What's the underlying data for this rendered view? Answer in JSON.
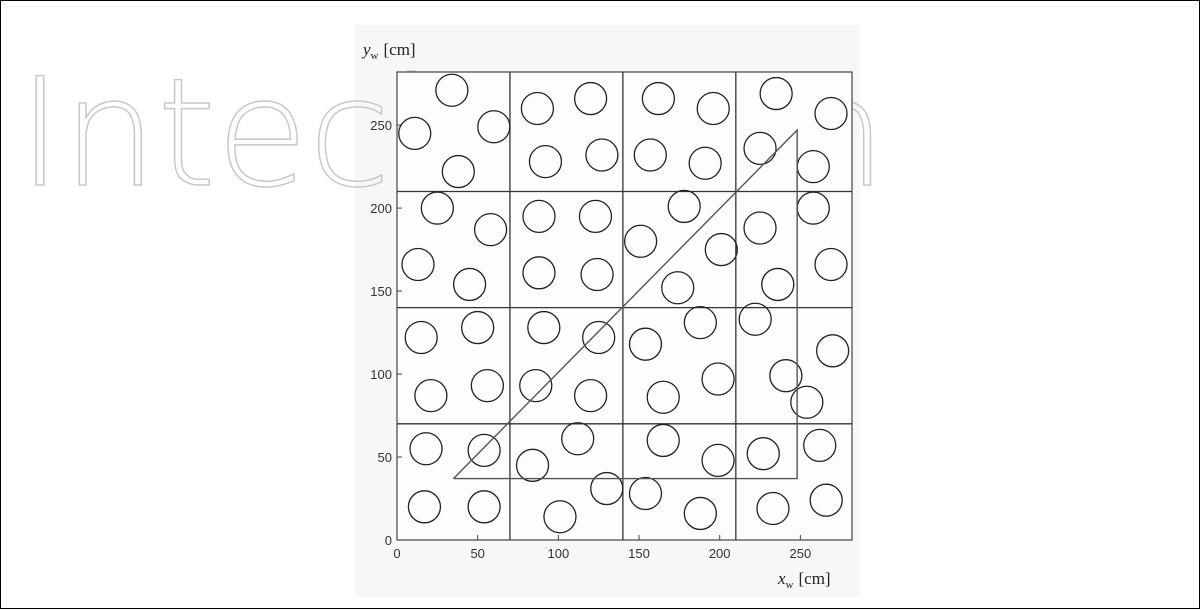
{
  "chart_data": {
    "type": "scatter",
    "watermark": "IntechOpen",
    "x_label": {
      "symbol": "x",
      "subscript": "w",
      "unit": "[cm]"
    },
    "y_label": {
      "symbol": "y",
      "subscript": "w",
      "unit": "[cm]"
    },
    "xlim": [
      0,
      282
    ],
    "ylim": [
      0,
      282
    ],
    "xticks": [
      0,
      50,
      100,
      150,
      200,
      250
    ],
    "yticks": [
      0,
      50,
      100,
      150,
      200,
      250
    ],
    "cell_lines_x": [
      70,
      140,
      210
    ],
    "cell_lines_y": [
      70,
      140,
      210
    ],
    "series": [
      {
        "name": "obstacles",
        "color": "#222222",
        "x": [
          34,
          11,
          60,
          38,
          87,
          120,
          92,
          127,
          162,
          196,
          157,
          191,
          235,
          269,
          225,
          258,
          25,
          58,
          13,
          45,
          88,
          123,
          88,
          124,
          151,
          178,
          201,
          174,
          225,
          258,
          236,
          269,
          15,
          50,
          21,
          56,
          91,
          125,
          86,
          120,
          154,
          188,
          165,
          199,
          222,
          241,
          270,
          254,
          18,
          54,
          112,
          84,
          165,
          199,
          227,
          262,
          17,
          54,
          101,
          130,
          154,
          188,
          233,
          266
        ],
        "y": [
          271,
          245,
          249,
          222,
          260,
          266,
          228,
          232,
          266,
          260,
          232,
          227,
          269,
          257,
          236,
          225,
          200,
          187,
          166,
          154,
          195,
          195,
          161,
          160,
          180,
          201,
          175,
          152,
          188,
          200,
          154,
          166,
          122,
          128,
          87,
          93,
          128,
          122,
          93,
          87,
          118,
          131,
          86,
          97,
          133,
          99,
          114,
          83,
          55,
          54,
          61,
          45,
          60,
          48,
          52,
          57,
          20,
          20,
          14,
          31,
          28,
          16,
          19,
          24
        ]
      },
      {
        "name": "path",
        "color": "#555555",
        "x": [
          35,
          248,
          248,
          35
        ],
        "y": [
          37,
          37,
          247,
          37
        ]
      }
    ]
  }
}
